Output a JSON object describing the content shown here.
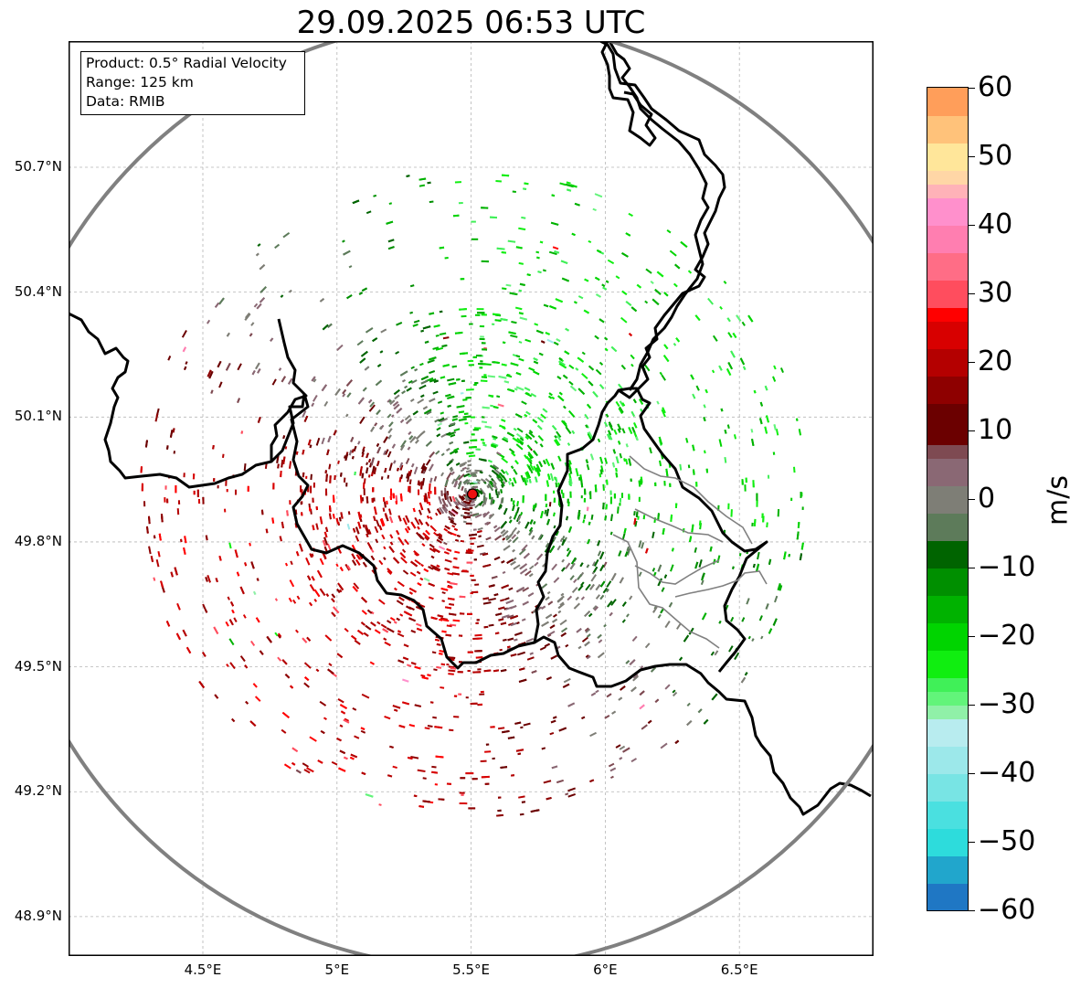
{
  "title": "29.09.2025 06:53 UTC",
  "info": {
    "product": "Product: 0.5° Radial Velocity",
    "range": "Range: 125 km",
    "data": "Data: RMIB"
  },
  "map": {
    "lon_range": [
      4.0,
      7.0
    ],
    "lat_range": [
      48.8,
      50.99
    ],
    "radar_site": {
      "lon": 5.505,
      "lat": 49.915
    },
    "range_ring_color": "#808080",
    "border_color": "#000000",
    "internal_border_color": "#888888",
    "radar_marker_color": "#ee1111",
    "lon_ticks": [
      {
        "value": 4.5,
        "label": "4.5°E"
      },
      {
        "value": 5.0,
        "label": "5°E"
      },
      {
        "value": 5.5,
        "label": "5.5°E"
      },
      {
        "value": 6.0,
        "label": "6°E"
      },
      {
        "value": 6.5,
        "label": "6.5°E"
      }
    ],
    "lat_ticks": [
      {
        "value": 50.7,
        "label": "50.7°N"
      },
      {
        "value": 50.4,
        "label": "50.4°N"
      },
      {
        "value": 50.1,
        "label": "50.1°N"
      },
      {
        "value": 49.8,
        "label": "49.8°N"
      },
      {
        "value": 49.5,
        "label": "49.5°N"
      },
      {
        "value": 49.2,
        "label": "49.2°N"
      },
      {
        "value": 48.9,
        "label": "48.9°N"
      }
    ]
  },
  "colorbar": {
    "units": "m/s",
    "min": -60,
    "max": 60,
    "ticks": [
      {
        "value": 60,
        "label": "60"
      },
      {
        "value": 50,
        "label": "50"
      },
      {
        "value": 40,
        "label": "40"
      },
      {
        "value": 30,
        "label": "30"
      },
      {
        "value": 20,
        "label": "20"
      },
      {
        "value": 10,
        "label": "10"
      },
      {
        "value": 0,
        "label": "0"
      },
      {
        "value": -10,
        "label": "−10"
      },
      {
        "value": -20,
        "label": "−20"
      },
      {
        "value": -30,
        "label": "−30"
      },
      {
        "value": -40,
        "label": "−40"
      },
      {
        "value": -50,
        "label": "−50"
      },
      {
        "value": -60,
        "label": "−60"
      }
    ],
    "segments": [
      {
        "from": -60,
        "to": -56,
        "color": "#1f77c4"
      },
      {
        "from": -56,
        "to": -52,
        "color": "#21a6cc"
      },
      {
        "from": -52,
        "to": -48,
        "color": "#2ddcdc"
      },
      {
        "from": -48,
        "to": -44,
        "color": "#4ae0e0"
      },
      {
        "from": -44,
        "to": -40,
        "color": "#78e4e4"
      },
      {
        "from": -40,
        "to": -36,
        "color": "#9ce8ea"
      },
      {
        "from": -36,
        "to": -32,
        "color": "#b8ecef"
      },
      {
        "from": -32,
        "to": -30,
        "color": "#90f0a8"
      },
      {
        "from": -30,
        "to": -28,
        "color": "#62f47a"
      },
      {
        "from": -28,
        "to": -26,
        "color": "#40f058"
      },
      {
        "from": -26,
        "to": -22,
        "color": "#10ee10"
      },
      {
        "from": -22,
        "to": -18,
        "color": "#00d400"
      },
      {
        "from": -18,
        "to": -14,
        "color": "#00b200"
      },
      {
        "from": -14,
        "to": -10,
        "color": "#008f00"
      },
      {
        "from": -10,
        "to": -6,
        "color": "#006400"
      },
      {
        "from": -6,
        "to": -2,
        "color": "#5d7b5a"
      },
      {
        "from": -2,
        "to": 2,
        "color": "#7e7e76"
      },
      {
        "from": 2,
        "to": 6,
        "color": "#8a6874"
      },
      {
        "from": 6,
        "to": 8,
        "color": "#7e4a52"
      },
      {
        "from": 8,
        "to": 14,
        "color": "#6b0000"
      },
      {
        "from": 14,
        "to": 18,
        "color": "#8e0000"
      },
      {
        "from": 18,
        "to": 22,
        "color": "#b40000"
      },
      {
        "from": 22,
        "to": 26,
        "color": "#d80000"
      },
      {
        "from": 26,
        "to": 28,
        "color": "#ff0000"
      },
      {
        "from": 28,
        "to": 32,
        "color": "#ff4d5e"
      },
      {
        "from": 32,
        "to": 36,
        "color": "#ff6d86"
      },
      {
        "from": 36,
        "to": 40,
        "color": "#ff7eb0"
      },
      {
        "from": 40,
        "to": 44,
        "color": "#ff90cc"
      },
      {
        "from": 44,
        "to": 46,
        "color": "#ffb2b8"
      },
      {
        "from": 46,
        "to": 48,
        "color": "#ffd6a6"
      },
      {
        "from": 48,
        "to": 52,
        "color": "#ffe69a"
      },
      {
        "from": 52,
        "to": 56,
        "color": "#ffc27a"
      },
      {
        "from": 56,
        "to": 60,
        "color": "#ff9e5a"
      }
    ]
  }
}
